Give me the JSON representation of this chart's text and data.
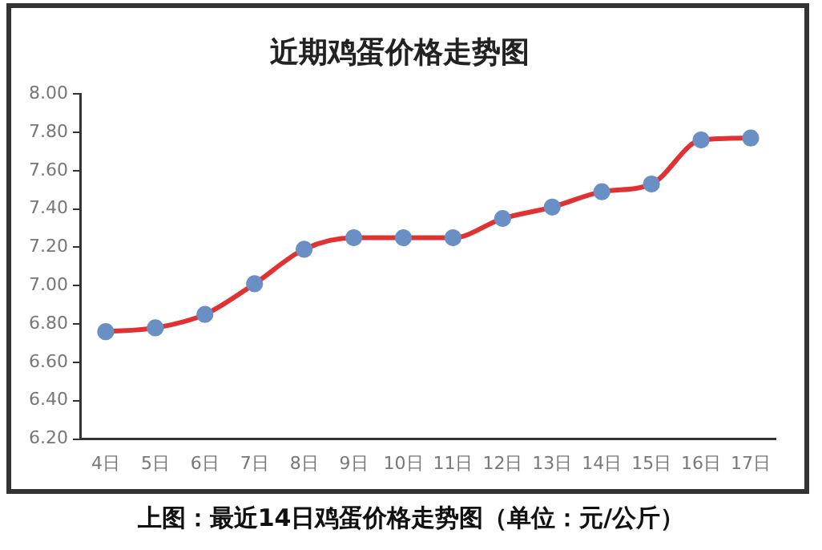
{
  "chart_data": {
    "type": "line",
    "title": "近期鸡蛋价格走势图",
    "categories": [
      "4日",
      "5日",
      "6日",
      "7日",
      "8日",
      "9日",
      "10日",
      "11日",
      "12日",
      "13日",
      "14日",
      "15日",
      "16日",
      "17日"
    ],
    "series": [
      {
        "color": "#e03232",
        "values": [
          6.76,
          6.78,
          6.85,
          7.01,
          7.19,
          7.25,
          7.25,
          7.25,
          7.35,
          7.41,
          7.49,
          7.53,
          7.76,
          7.77
        ]
      }
    ],
    "ylim": [
      6.2,
      8.0
    ],
    "yticks": [
      {
        "value": 6.2,
        "label": "6.20"
      },
      {
        "value": 6.4,
        "label": "6.40"
      },
      {
        "value": 6.6,
        "label": "6.60"
      },
      {
        "value": 6.8,
        "label": "6.80"
      },
      {
        "value": 7.0,
        "label": "7.00"
      },
      {
        "value": 7.2,
        "label": "7.20"
      },
      {
        "value": 7.4,
        "label": "7.40"
      },
      {
        "value": 7.6,
        "label": "7.60"
      },
      {
        "value": 7.8,
        "label": "7.80"
      },
      {
        "value": 8.0,
        "label": "8.00"
      }
    ],
    "grid": false,
    "legend": false,
    "marker": "circle",
    "line_style": "solid",
    "annotations": [
      "上图：最近14日鸡蛋价格走势图（单位：元/公斤）"
    ]
  }
}
